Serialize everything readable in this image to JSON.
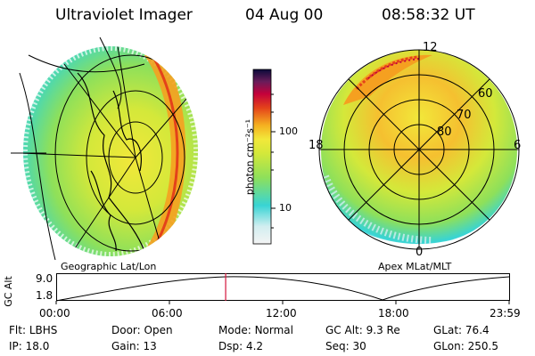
{
  "header": {
    "instrument": "Ultraviolet Imager",
    "date": "04 Aug 00",
    "time": "08:58:32 UT"
  },
  "left_panel": {
    "caption": "Geographic Lat/Lon"
  },
  "right_panel": {
    "caption": "Apex MLat/MLT",
    "mlt_labels": {
      "top": "12",
      "left": "18",
      "right": "6",
      "bottom": "0"
    },
    "mlat_labels": [
      "60",
      "70",
      "80"
    ]
  },
  "colorbar": {
    "unit_label": "photon cm⁻²s⁻¹",
    "ticks": [
      {
        "label": "100",
        "value": 100
      },
      {
        "label": "10",
        "value": 10
      }
    ]
  },
  "altitude_plot": {
    "ylabel": "GC Alt",
    "yticks": [
      "9.0",
      "1.8"
    ],
    "xticks": [
      "00:00",
      "06:00",
      "12:00",
      "18:00",
      "23:59"
    ],
    "current_time_hours": 8.98
  },
  "info": {
    "row1": [
      {
        "key": "Flt:",
        "value": "LBHS"
      },
      {
        "key": "Door:",
        "value": "Open"
      },
      {
        "key": "Mode:",
        "value": "Normal"
      },
      {
        "key": "GC Alt:",
        "value": "9.3 Re"
      },
      {
        "key": "GLat:",
        "value": "76.4"
      }
    ],
    "row2": [
      {
        "key": "IP:",
        "value": "18.0"
      },
      {
        "key": "Gain:",
        "value": "13"
      },
      {
        "key": "Dsp:",
        "value": "4.2"
      },
      {
        "key": "Seq:",
        "value": "30"
      },
      {
        "key": "GLon:",
        "value": "250.5"
      }
    ]
  },
  "colors": {
    "scale": [
      "#f4f4f4",
      "#d2eef0",
      "#38d4d4",
      "#8ee05a",
      "#d4e83a",
      "#f2e83a",
      "#f5b020",
      "#e4421a",
      "#c4003a",
      "#6a1c5a",
      "#0a0a3a"
    ]
  }
}
